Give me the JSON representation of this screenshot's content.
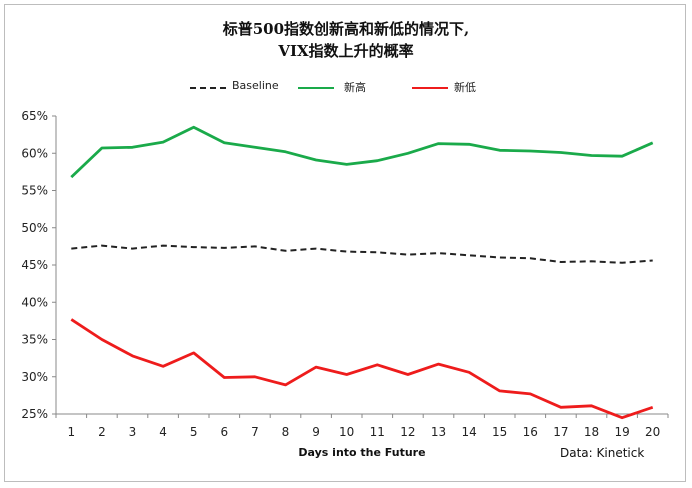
{
  "chart_data": {
    "type": "line",
    "title_line1": "标普500指数创新高和新低的情况下,",
    "title_line2": "VIX指数上升的概率",
    "xlabel": "Days into the Future",
    "ylabel": "",
    "x": [
      1,
      2,
      3,
      4,
      5,
      6,
      7,
      8,
      9,
      10,
      11,
      12,
      13,
      14,
      15,
      16,
      17,
      18,
      19,
      20
    ],
    "x_tick_labels": [
      "1",
      "2",
      "3",
      "4",
      "5",
      "6",
      "7",
      "8",
      "9",
      "10",
      "11",
      "12",
      "13",
      "14",
      "15",
      "16",
      "17",
      "18",
      "19",
      "20"
    ],
    "ylim": [
      25,
      65
    ],
    "y_ticks": [
      25,
      30,
      35,
      40,
      45,
      50,
      55,
      60,
      65
    ],
    "y_tick_labels": [
      "25%",
      "30%",
      "35%",
      "40%",
      "45%",
      "50%",
      "55%",
      "60%",
      "65%"
    ],
    "grid": false,
    "legend_position": "top-center",
    "series": [
      {
        "name": "Baseline",
        "color": "#222222",
        "style": "dashed",
        "values": [
          47.2,
          47.6,
          47.2,
          47.6,
          47.4,
          47.3,
          47.5,
          46.9,
          47.2,
          46.8,
          46.7,
          46.4,
          46.6,
          46.3,
          46.0,
          45.9,
          45.4,
          45.5,
          45.3,
          45.6
        ]
      },
      {
        "name": "新高",
        "color": "#1aaa4a",
        "style": "solid",
        "values": [
          56.8,
          60.7,
          60.8,
          61.5,
          63.5,
          61.4,
          60.8,
          60.2,
          59.1,
          58.5,
          59.0,
          60.0,
          61.3,
          61.2,
          60.4,
          60.3,
          60.1,
          59.7,
          59.6,
          61.4
        ]
      },
      {
        "name": "新低",
        "color": "#ee1c1c",
        "style": "solid",
        "values": [
          37.7,
          35.0,
          32.8,
          31.4,
          33.2,
          29.9,
          30.0,
          28.9,
          31.3,
          30.3,
          31.6,
          30.3,
          31.7,
          30.6,
          28.1,
          27.7,
          25.9,
          26.1,
          24.5,
          25.9
        ]
      }
    ]
  },
  "source_note": "Data: Kinetick"
}
